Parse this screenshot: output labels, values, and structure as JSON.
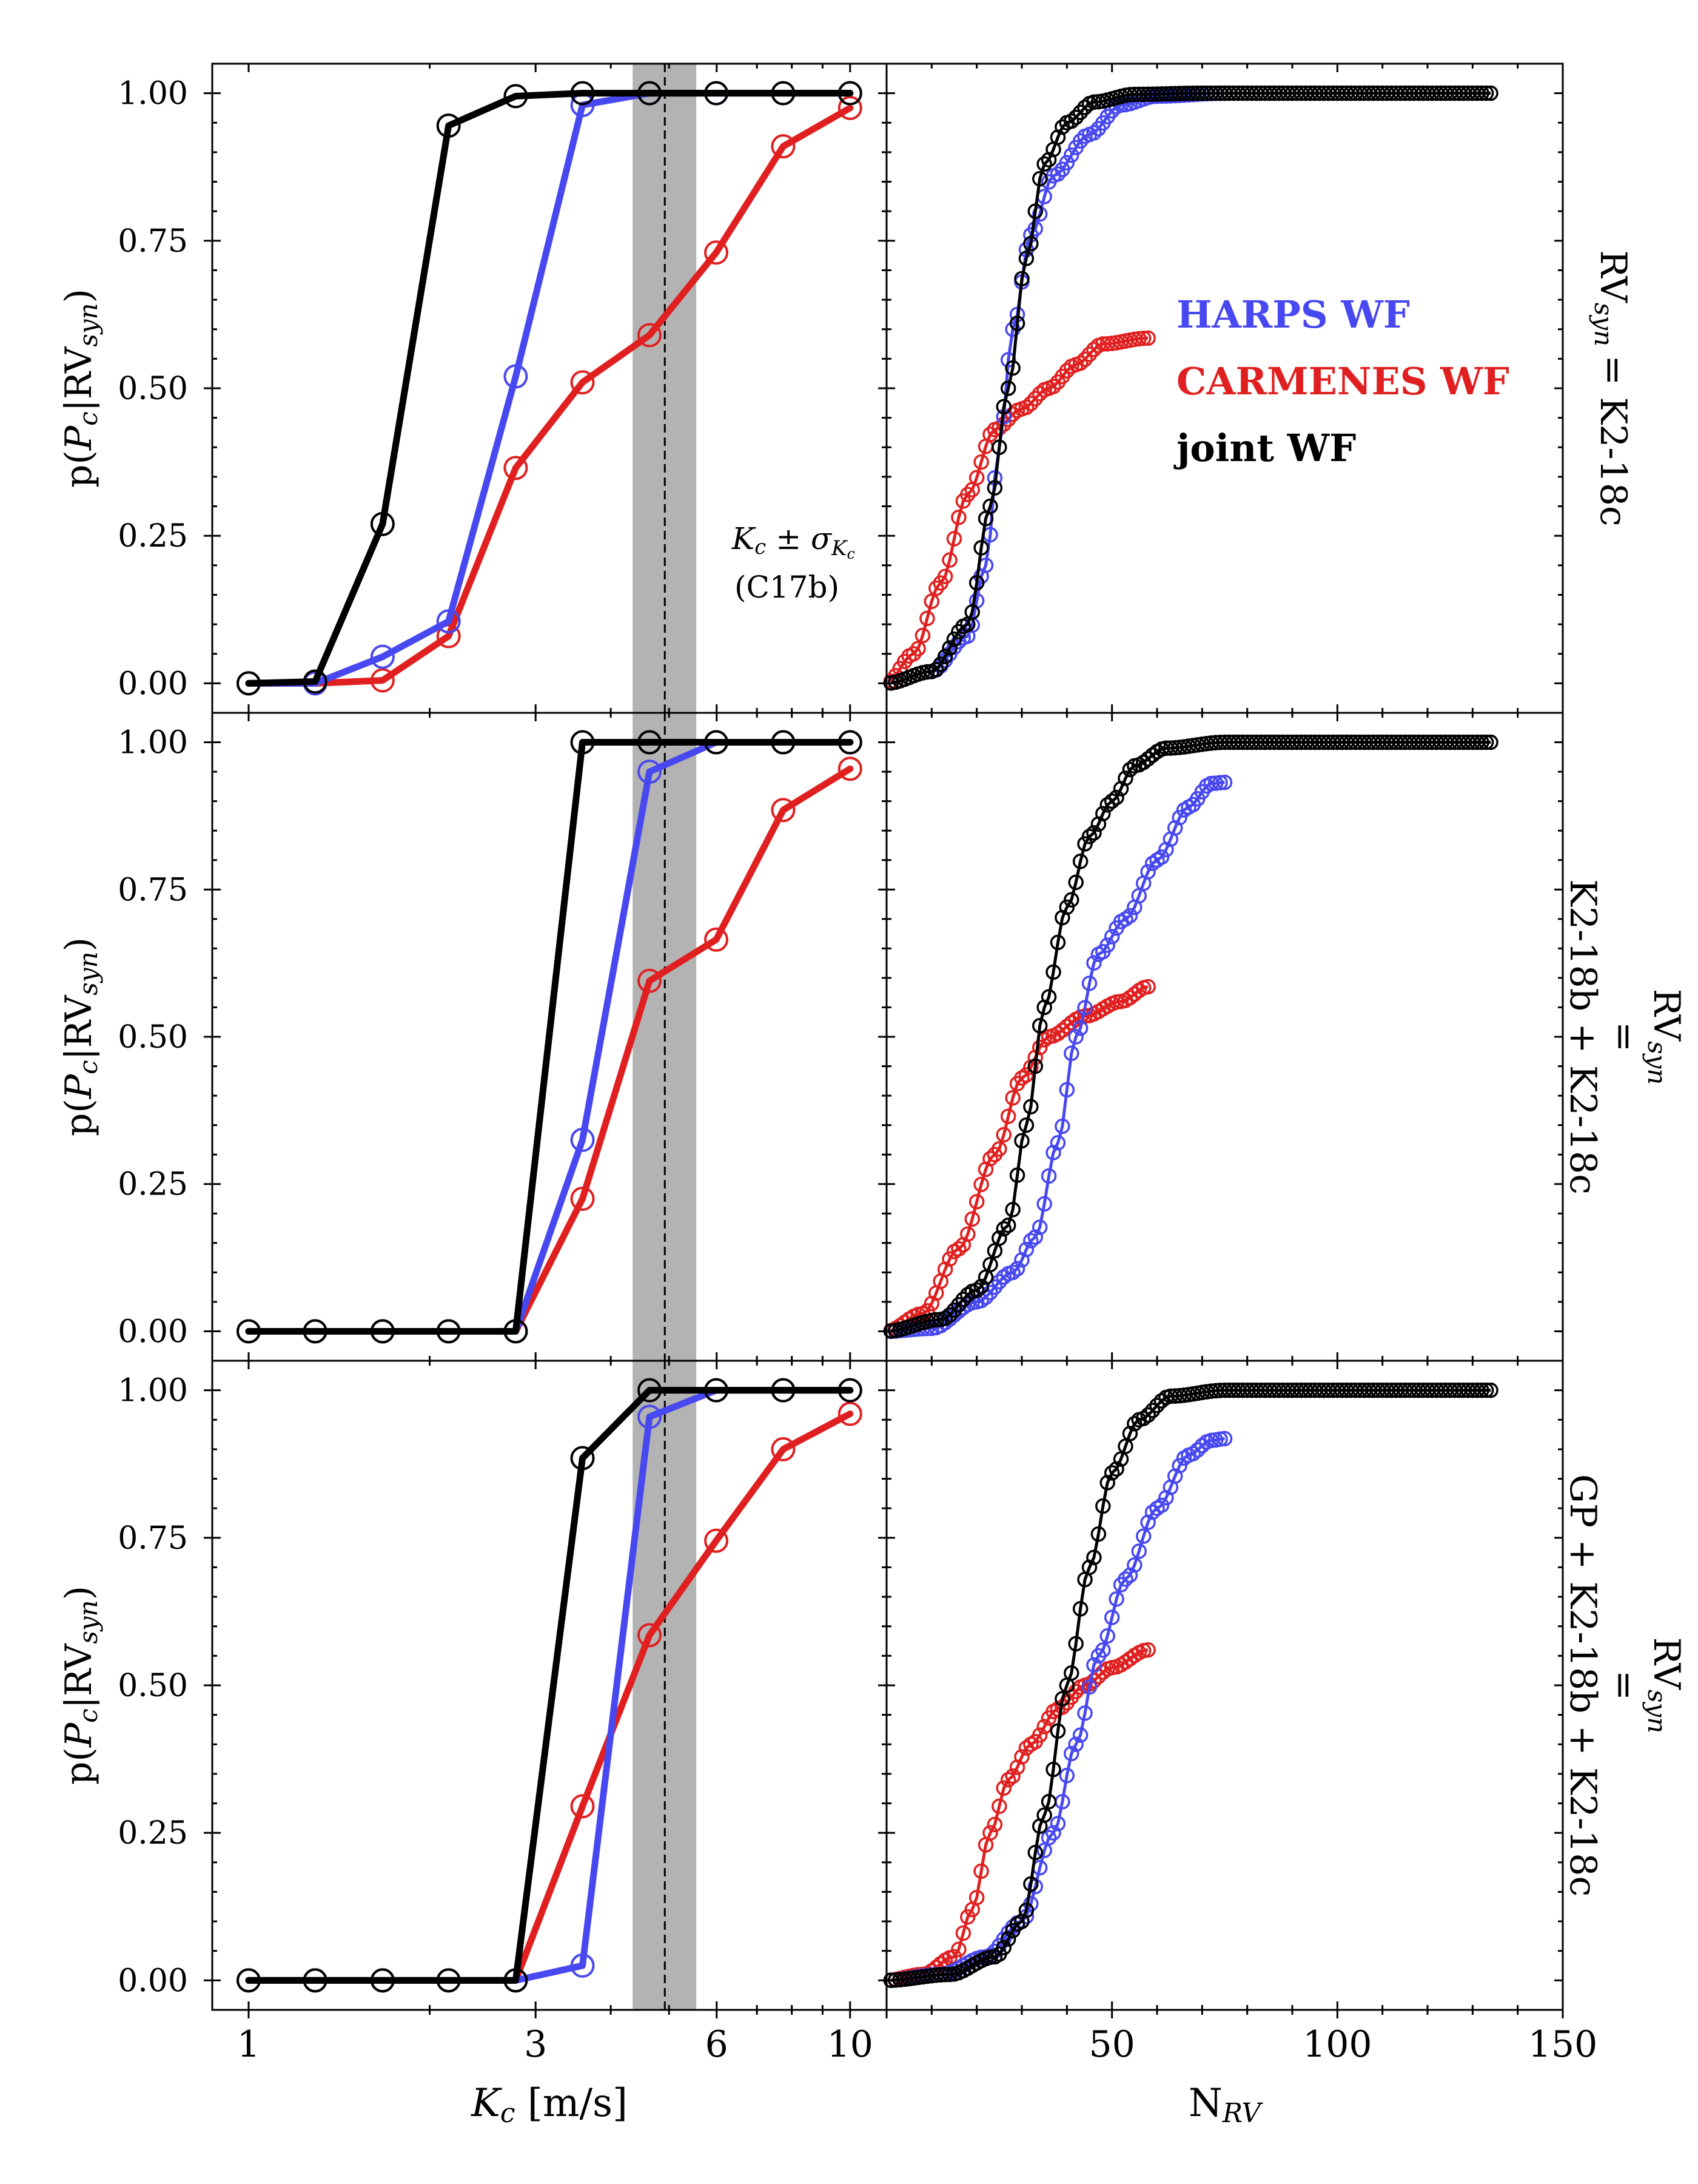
{
  "figure": {
    "ylabel_prefix": "p(",
    "ylabel_P": "P",
    "ylabel_sub_c": "c",
    "ylabel_mid": "|RV",
    "ylabel_sub_syn": "syn",
    "ylabel_suffix": ")",
    "xlabel_left_K": "K",
    "xlabel_left_sub": "c",
    "xlabel_left_unit": " [m/s]",
    "xlabel_right_N": "N",
    "xlabel_right_sub": "RV",
    "xticks_left": [
      "1",
      "3",
      "6",
      "10"
    ],
    "xticks_right": [
      "50",
      "100",
      "150"
    ],
    "yticks": [
      "0.00",
      "0.25",
      "0.50",
      "0.75",
      "1.00"
    ],
    "annotation_K": "K",
    "annotation_sub": "c",
    "annotation_pm": " ± σ",
    "annotation_sigma_sub": "K",
    "annotation_sigma_subsub": "c",
    "annotation_ref": "(C17b)",
    "legend": [
      {
        "label": "HARPS WF",
        "color": "#4848f0"
      },
      {
        "label": "CARMENES WF",
        "color": "#e02020"
      },
      {
        "label": "joint WF",
        "color": "#000000"
      }
    ],
    "row_labels": [
      {
        "rv": "RV",
        "sub": "syn",
        "lines": [
          "= K2-18c"
        ]
      },
      {
        "rv": "RV",
        "sub": "syn",
        "lines": [
          "=",
          "K2-18b + K2-18c"
        ]
      },
      {
        "rv": "RV",
        "sub": "syn",
        "lines": [
          "=",
          "GP + K2-18b + K2-18c"
        ]
      }
    ]
  },
  "colors": {
    "harps": "#4848f0",
    "carmenes": "#e02020",
    "joint": "#000000",
    "band": "#b3b3b3"
  },
  "chart_data": [
    {
      "type": "line",
      "row": 1,
      "panel": "left",
      "xscale": "log",
      "xlabel": "K_c [m/s]",
      "ylabel": "p(P_c|RV_syn)",
      "xlim": [
        0.87,
        11.5
      ],
      "ylim": [
        -0.05,
        1.05
      ],
      "band": [
        4.35,
        5.55
      ],
      "vline": 4.92,
      "x": [
        1.0,
        1.29,
        1.67,
        2.15,
        2.78,
        3.59,
        4.64,
        5.99,
        7.74,
        10.0
      ],
      "series": [
        {
          "name": "HARPS WF",
          "values": [
            0.0,
            0.0,
            0.045,
            0.105,
            0.52,
            0.98,
            1.0,
            1.0,
            1.0,
            1.0
          ]
        },
        {
          "name": "CARMENES WF",
          "values": [
            0.0,
            0.0,
            0.005,
            0.08,
            0.365,
            0.51,
            0.59,
            0.73,
            0.91,
            0.975
          ]
        },
        {
          "name": "joint WF",
          "values": [
            0.0,
            0.003,
            0.27,
            0.945,
            0.995,
            1.0,
            1.0,
            1.0,
            1.0,
            1.0
          ]
        }
      ]
    },
    {
      "type": "line",
      "row": 2,
      "panel": "left",
      "xscale": "log",
      "xlabel": "K_c [m/s]",
      "ylabel": "p(P_c|RV_syn)",
      "xlim": [
        0.87,
        11.5
      ],
      "ylim": [
        -0.05,
        1.05
      ],
      "band": [
        4.35,
        5.55
      ],
      "vline": 4.92,
      "x": [
        1.0,
        1.29,
        1.67,
        2.15,
        2.78,
        3.59,
        4.64,
        5.99,
        7.74,
        10.0
      ],
      "series": [
        {
          "name": "HARPS WF",
          "values": [
            0.0,
            0.0,
            0.0,
            0.0,
            0.0,
            0.325,
            0.95,
            1.0,
            1.0,
            1.0
          ]
        },
        {
          "name": "CARMENES WF",
          "values": [
            0.0,
            0.0,
            0.0,
            0.0,
            0.0,
            0.225,
            0.595,
            0.665,
            0.885,
            0.955
          ]
        },
        {
          "name": "joint WF",
          "values": [
            0.0,
            0.0,
            0.0,
            0.0,
            0.0,
            1.0,
            1.0,
            1.0,
            1.0,
            1.0
          ]
        }
      ]
    },
    {
      "type": "line",
      "row": 3,
      "panel": "left",
      "xscale": "log",
      "xlabel": "K_c [m/s]",
      "ylabel": "p(P_c|RV_syn)",
      "xlim": [
        0.87,
        11.5
      ],
      "ylim": [
        -0.05,
        1.05
      ],
      "band": [
        4.35,
        5.55
      ],
      "vline": 4.92,
      "x": [
        1.0,
        1.29,
        1.67,
        2.15,
        2.78,
        3.59,
        4.64,
        5.99,
        7.74,
        10.0
      ],
      "series": [
        {
          "name": "HARPS WF",
          "values": [
            0.0,
            0.0,
            0.0,
            0.0,
            0.0,
            0.025,
            0.955,
            1.0,
            1.0,
            1.0
          ]
        },
        {
          "name": "CARMENES WF",
          "values": [
            0.0,
            0.0,
            0.0,
            0.0,
            0.0,
            0.295,
            0.585,
            0.745,
            0.9,
            0.96
          ]
        },
        {
          "name": "joint WF",
          "values": [
            0.0,
            0.0,
            0.0,
            0.0,
            0.0,
            0.885,
            1.0,
            1.0,
            1.0,
            1.0
          ]
        }
      ]
    },
    {
      "type": "scatter",
      "row": 1,
      "panel": "right",
      "xlabel": "N_RV",
      "xlim": [
        0,
        150
      ],
      "ylim": [
        -0.05,
        1.05
      ],
      "series": [
        {
          "name": "HARPS WF",
          "n_points": 75,
          "knots": [
            [
              0,
              0.0
            ],
            [
              10,
              0.02
            ],
            [
              18,
              0.08
            ],
            [
              22,
              0.2
            ],
            [
              25,
              0.4
            ],
            [
              28,
              0.6
            ],
            [
              32,
              0.76
            ],
            [
              37,
              0.86
            ],
            [
              45,
              0.93
            ],
            [
              52,
              0.98
            ],
            [
              60,
              0.995
            ],
            [
              75,
              1.0
            ]
          ]
        },
        {
          "name": "CARMENES WF",
          "n_points": 58,
          "knots": [
            [
              0,
              0.0
            ],
            [
              6,
              0.05
            ],
            [
              12,
              0.17
            ],
            [
              18,
              0.32
            ],
            [
              24,
              0.43
            ],
            [
              30,
              0.465
            ],
            [
              36,
              0.5
            ],
            [
              42,
              0.54
            ],
            [
              48,
              0.575
            ],
            [
              58,
              0.585
            ]
          ]
        },
        {
          "name": "joint WF",
          "n_points": 134,
          "knots": [
            [
              0,
              0.0
            ],
            [
              10,
              0.02
            ],
            [
              18,
              0.1
            ],
            [
              23,
              0.3
            ],
            [
              27,
              0.5
            ],
            [
              31,
              0.72
            ],
            [
              35,
              0.88
            ],
            [
              40,
              0.95
            ],
            [
              46,
              0.985
            ],
            [
              55,
              0.998
            ],
            [
              70,
              1.0
            ],
            [
              134,
              1.0
            ]
          ]
        }
      ]
    },
    {
      "type": "scatter",
      "row": 2,
      "panel": "right",
      "xlabel": "N_RV",
      "xlim": [
        0,
        150
      ],
      "ylim": [
        -0.05,
        1.05
      ],
      "series": [
        {
          "name": "HARPS WF",
          "n_points": 75,
          "knots": [
            [
              0,
              0.0
            ],
            [
              10,
              0.005
            ],
            [
              20,
              0.05
            ],
            [
              28,
              0.1
            ],
            [
              33,
              0.16
            ],
            [
              38,
              0.32
            ],
            [
              42,
              0.5
            ],
            [
              47,
              0.64
            ],
            [
              53,
              0.7
            ],
            [
              60,
              0.8
            ],
            [
              67,
              0.89
            ],
            [
              72,
              0.93
            ],
            [
              75,
              0.932
            ]
          ]
        },
        {
          "name": "CARMENES WF",
          "n_points": 58,
          "knots": [
            [
              0,
              0.0
            ],
            [
              8,
              0.03
            ],
            [
              16,
              0.14
            ],
            [
              24,
              0.3
            ],
            [
              30,
              0.43
            ],
            [
              36,
              0.5
            ],
            [
              44,
              0.535
            ],
            [
              52,
              0.56
            ],
            [
              58,
              0.585
            ]
          ]
        },
        {
          "name": "joint WF",
          "n_points": 134,
          "knots": [
            [
              0,
              0.0
            ],
            [
              12,
              0.02
            ],
            [
              20,
              0.07
            ],
            [
              27,
              0.18
            ],
            [
              31,
              0.35
            ],
            [
              35,
              0.55
            ],
            [
              40,
              0.72
            ],
            [
              45,
              0.84
            ],
            [
              50,
              0.9
            ],
            [
              55,
              0.96
            ],
            [
              62,
              0.99
            ],
            [
              75,
              1.0
            ],
            [
              134,
              1.0
            ]
          ]
        }
      ]
    },
    {
      "type": "scatter",
      "row": 3,
      "panel": "right",
      "xlabel": "N_RV",
      "xlim": [
        0,
        150
      ],
      "ylim": [
        -0.05,
        1.05
      ],
      "series": [
        {
          "name": "HARPS WF",
          "n_points": 75,
          "knots": [
            [
              0,
              0.0
            ],
            [
              12,
              0.01
            ],
            [
              22,
              0.04
            ],
            [
              30,
              0.1
            ],
            [
              37,
              0.25
            ],
            [
              42,
              0.4
            ],
            [
              47,
              0.55
            ],
            [
              53,
              0.68
            ],
            [
              60,
              0.8
            ],
            [
              67,
              0.89
            ],
            [
              72,
              0.915
            ],
            [
              75,
              0.918
            ]
          ]
        },
        {
          "name": "CARMENES WF",
          "n_points": 58,
          "knots": [
            [
              0,
              0.0
            ],
            [
              8,
              0.01
            ],
            [
              15,
              0.04
            ],
            [
              19,
              0.12
            ],
            [
              23,
              0.25
            ],
            [
              27,
              0.34
            ],
            [
              32,
              0.4
            ],
            [
              38,
              0.46
            ],
            [
              44,
              0.5
            ],
            [
              50,
              0.53
            ],
            [
              58,
              0.56
            ]
          ]
        },
        {
          "name": "joint WF",
          "n_points": 134,
          "knots": [
            [
              0,
              0.0
            ],
            [
              14,
              0.01
            ],
            [
              24,
              0.04
            ],
            [
              30,
              0.1
            ],
            [
              35,
              0.28
            ],
            [
              40,
              0.5
            ],
            [
              45,
              0.7
            ],
            [
              50,
              0.86
            ],
            [
              56,
              0.95
            ],
            [
              63,
              0.99
            ],
            [
              75,
              1.0
            ],
            [
              134,
              1.0
            ]
          ]
        }
      ]
    }
  ]
}
